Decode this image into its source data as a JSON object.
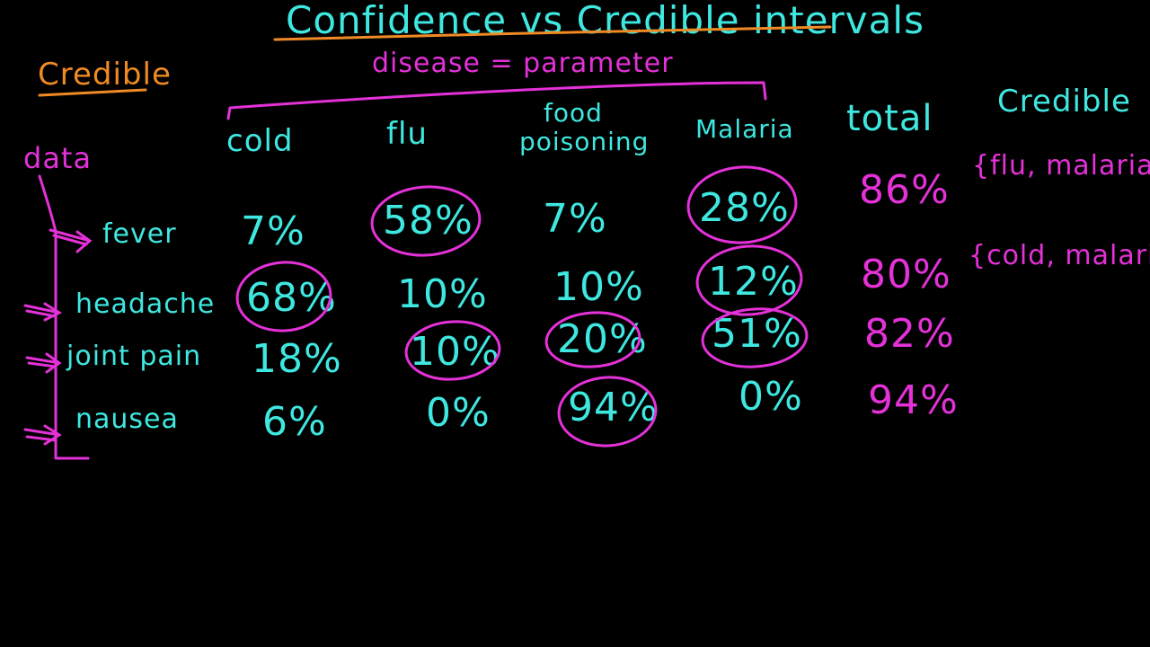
{
  "title": "Confidence vs Credible intervals",
  "side_label": "Credible",
  "subtitle": "disease = parameter",
  "data_label": "data",
  "columns": [
    "cold",
    "flu",
    "food poisoning",
    "Malaria"
  ],
  "total_header": "total",
  "credible_header": "Credible",
  "rows": [
    {
      "symptom": "fever",
      "values": [
        "7%",
        "58%",
        "7%",
        "28%"
      ],
      "total": "86%",
      "credible": "{flu, malaria}"
    },
    {
      "symptom": "headache",
      "values": [
        "68%",
        "10%",
        "10%",
        "12%"
      ],
      "total": "80%",
      "credible": "{cold, malaria}"
    },
    {
      "symptom": "joint pain",
      "values": [
        "18%",
        "10%",
        "20%",
        "51%"
      ],
      "total": "82%",
      "credible": ""
    },
    {
      "symptom": "nausea",
      "values": [
        "6%",
        "0%",
        "94%",
        "0%"
      ],
      "total": "94%",
      "credible": ""
    }
  ],
  "colors": {
    "background": "#000000",
    "cyan_ink": "#3ee8e0",
    "pink_ink": "#e431d8",
    "orange_ink": "#f08a24"
  }
}
